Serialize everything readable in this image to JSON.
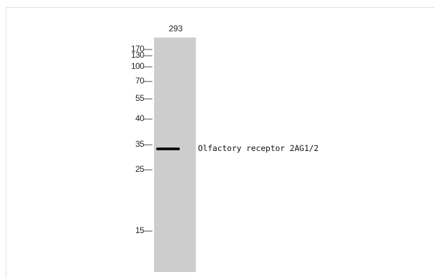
{
  "lane": {
    "label": "293"
  },
  "markers": [
    "170—",
    "130—",
    "100—",
    "70—",
    "55—",
    "40—",
    "35—",
    "25—",
    "15—"
  ],
  "band": {
    "label": "Olfactory receptor 2AG1/2"
  },
  "colors": {
    "lane": "#cdcdcd",
    "band": "#111111"
  }
}
